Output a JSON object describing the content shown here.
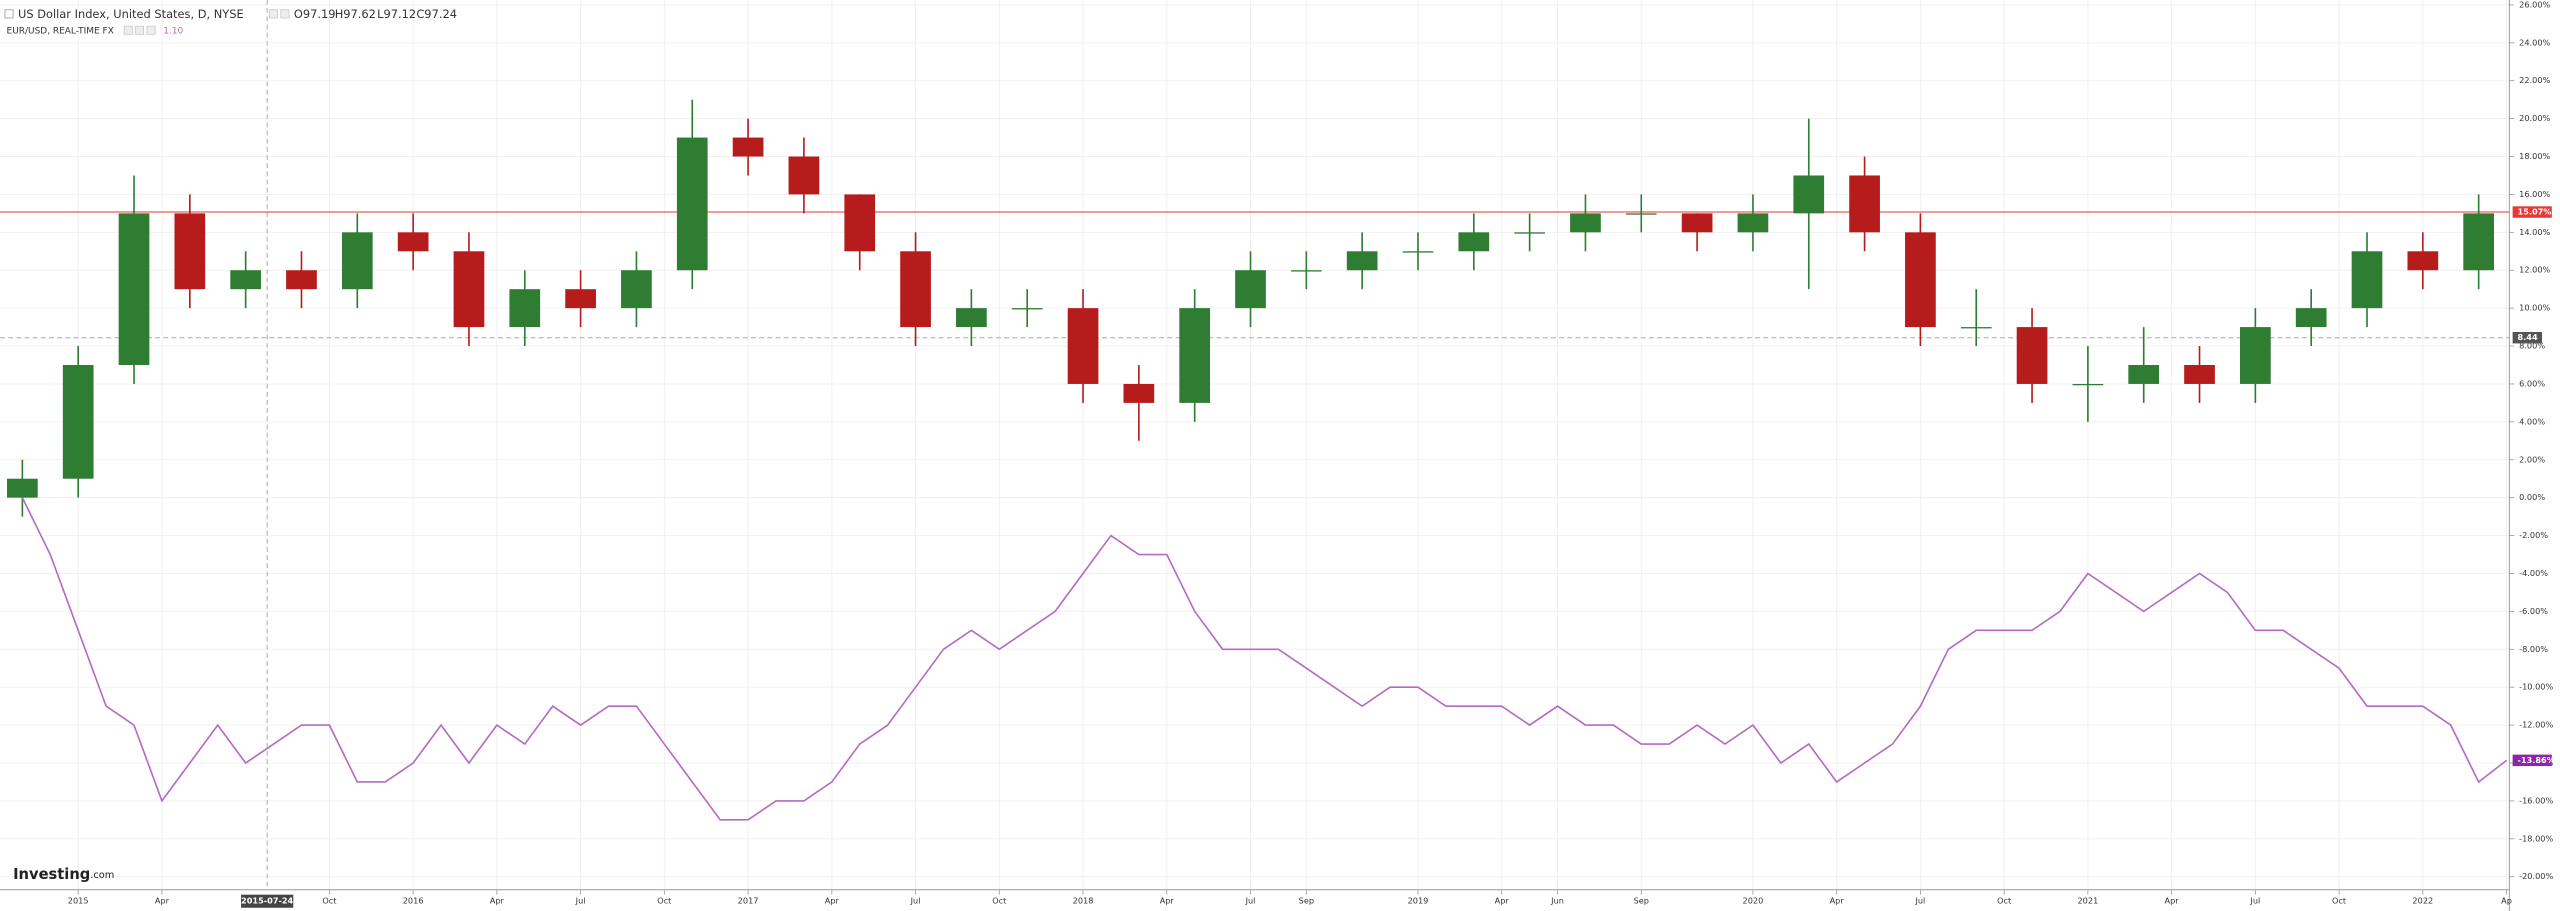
{
  "chart_data": {
    "type": "candlestick",
    "series": [
      {
        "name": "US Dollar Index, United States, D, NYSE",
        "type": "candlestick",
        "up_color": "#2e7d32",
        "down_color": "#b71c1c",
        "quote": [
          "O97.19",
          "H97.62",
          "L97.12",
          "C97.24"
        ],
        "last": {
          "value": 15.07,
          "label": "15.07%"
        },
        "last_color": "#e53935",
        "x": [
          -2,
          0,
          2,
          4,
          6,
          8,
          10,
          12,
          14,
          16,
          18,
          20,
          22,
          24,
          26,
          28,
          30,
          32,
          34,
          36,
          38,
          40,
          42,
          44,
          46,
          48,
          50,
          52,
          54,
          56,
          58,
          60,
          62,
          64,
          66,
          68,
          70,
          72,
          74,
          76,
          78,
          80,
          82,
          84,
          86
        ],
        "open": [
          0,
          1,
          7,
          15,
          11,
          12,
          11,
          14,
          13,
          9,
          11,
          10,
          12,
          19,
          18,
          16,
          13,
          9,
          10,
          10,
          6,
          5,
          10,
          12,
          12,
          13,
          13,
          14,
          14,
          15,
          15,
          14,
          15,
          17,
          14,
          9,
          9,
          6,
          6,
          7,
          6,
          9,
          10,
          13,
          12
        ],
        "high": [
          2,
          8,
          17,
          16,
          13,
          13,
          15,
          15,
          14,
          12,
          12,
          13,
          21,
          20,
          19,
          16,
          14,
          11,
          11,
          11,
          7,
          11,
          13,
          13,
          14,
          14,
          15,
          15,
          16,
          16,
          15,
          16,
          20,
          18,
          15,
          11,
          10,
          8,
          9,
          8,
          10,
          11,
          14,
          14,
          16
        ],
        "low": [
          -1,
          0,
          6,
          10,
          10,
          10,
          10,
          12,
          8,
          8,
          9,
          9,
          11,
          17,
          15,
          12,
          8,
          8,
          9,
          5,
          3,
          4,
          9,
          11,
          11,
          12,
          12,
          13,
          13,
          14,
          13,
          13,
          11,
          13,
          8,
          8,
          5,
          4,
          5,
          5,
          5,
          8,
          9,
          11,
          11
        ],
        "close": [
          1,
          7,
          15,
          11,
          12,
          11,
          14,
          13,
          9,
          11,
          10,
          12,
          19,
          18,
          16,
          13,
          9,
          10,
          10,
          6,
          5,
          10,
          12,
          12,
          13,
          13,
          14,
          14,
          15,
          15,
          14,
          15,
          17,
          14,
          9,
          9,
          6,
          6,
          7,
          6,
          9,
          10,
          13,
          12,
          15
        ]
      },
      {
        "name": "EUR/USD, REAL-TIME FX",
        "type": "line",
        "color": "#b36bc4",
        "quote": "1.10",
        "last": {
          "value": -13.86,
          "label": "-13.86%"
        },
        "last_color": "#8e24aa",
        "x": [
          -2,
          -1,
          0,
          1,
          2,
          3,
          4,
          5,
          6,
          7,
          8,
          9,
          10,
          11,
          12,
          13,
          14,
          15,
          16,
          17,
          18,
          19,
          20,
          21,
          22,
          23,
          24,
          25,
          26,
          27,
          28,
          29,
          30,
          31,
          32,
          33,
          34,
          35,
          36,
          37,
          38,
          39,
          40,
          41,
          42,
          43,
          44,
          45,
          46,
          47,
          48,
          49,
          50,
          51,
          52,
          53,
          54,
          55,
          56,
          57,
          58,
          59,
          60,
          61,
          62,
          63,
          64,
          65,
          66,
          67,
          68,
          69,
          70,
          71,
          72,
          73,
          74,
          75,
          76,
          77,
          78,
          79,
          80,
          81,
          82,
          83,
          84,
          85,
          86,
          87
        ],
        "values": [
          0,
          -3,
          -7,
          -11,
          -12,
          -16,
          -14,
          -12,
          -14,
          -13,
          -12,
          -12,
          -15,
          -15,
          -14,
          -12,
          -14,
          -12,
          -13,
          -11,
          -12,
          -11,
          -11,
          -13,
          -15,
          -17,
          -17,
          -16,
          -16,
          -15,
          -13,
          -12,
          -10,
          -8,
          -7,
          -8,
          -7,
          -6,
          -4,
          -2,
          -3,
          -3,
          -6,
          -8,
          -8,
          -8,
          -9,
          -10,
          -11,
          -10,
          -10,
          -11,
          -11,
          -11,
          -12,
          -11,
          -12,
          -12,
          -13,
          -13,
          -12,
          -13,
          -12,
          -14,
          -13,
          -15,
          -14,
          -13,
          -11,
          -8,
          -7,
          -7,
          -7,
          -6,
          -4,
          -5,
          -6,
          -5,
          -4,
          -5,
          -7,
          -7,
          -8,
          -9,
          -11,
          -11,
          -11,
          -12,
          -15,
          -13.86
        ]
      }
    ],
    "reference_line": {
      "value": 8.44,
      "label": "8.44"
    },
    "crosshair": {
      "value": 6.77,
      "label": "2015-07-24"
    },
    "xlim": [
      -2.8,
      87.1
    ],
    "xticks": [
      {
        "value": 0,
        "label": "2015"
      },
      {
        "value": 3,
        "label": "Apr"
      },
      {
        "value": 9,
        "label": "Oct"
      },
      {
        "value": 12,
        "label": "2016"
      },
      {
        "value": 15,
        "label": "Apr"
      },
      {
        "value": 18,
        "label": "Jul"
      },
      {
        "value": 21,
        "label": "Oct"
      },
      {
        "value": 24,
        "label": "2017"
      },
      {
        "value": 27,
        "label": "Apr"
      },
      {
        "value": 30,
        "label": "Jul"
      },
      {
        "value": 33,
        "label": "Oct"
      },
      {
        "value": 36,
        "label": "2018"
      },
      {
        "value": 39,
        "label": "Apr"
      },
      {
        "value": 42,
        "label": "Jul"
      },
      {
        "value": 44,
        "label": "Sep"
      },
      {
        "value": 48,
        "label": "2019"
      },
      {
        "value": 51,
        "label": "Apr"
      },
      {
        "value": 53,
        "label": "Jun"
      },
      {
        "value": 56,
        "label": "Sep"
      },
      {
        "value": 60,
        "label": "2020"
      },
      {
        "value": 63,
        "label": "Apr"
      },
      {
        "value": 66,
        "label": "Jul"
      },
      {
        "value": 69,
        "label": "Oct"
      },
      {
        "value": 72,
        "label": "2021"
      },
      {
        "value": 75,
        "label": "Apr"
      },
      {
        "value": 78,
        "label": "Jul"
      },
      {
        "value": 81,
        "label": "Oct"
      },
      {
        "value": 84,
        "label": "2022"
      },
      {
        "value": 87,
        "label": "Ap"
      }
    ],
    "ylim": [
      -20,
      26
    ],
    "yticks": [
      {
        "value": 26,
        "label": "26.00%"
      },
      {
        "value": 24,
        "label": "24.00%"
      },
      {
        "value": 22,
        "label": "22.00%"
      },
      {
        "value": 20,
        "label": "20.00%"
      },
      {
        "value": 18,
        "label": "18.00%"
      },
      {
        "value": 16,
        "label": "16.00%"
      },
      {
        "value": 14,
        "label": "14.00%"
      },
      {
        "value": 12,
        "label": "12.00%"
      },
      {
        "value": 10,
        "label": "10.00%"
      },
      {
        "value": 8,
        "label": "8.00%"
      },
      {
        "value": 6,
        "label": "6.00%"
      },
      {
        "value": 4,
        "label": "4.00%"
      },
      {
        "value": 2,
        "label": "2.00%"
      },
      {
        "value": 0,
        "label": "0.00%"
      },
      {
        "value": -2,
        "label": "-2.00%"
      },
      {
        "value": -4,
        "label": "-4.00%"
      },
      {
        "value": -6,
        "label": "-6.00%"
      },
      {
        "value": -8,
        "label": "-8.00%"
      },
      {
        "value": -10,
        "label": "-10.00%"
      },
      {
        "value": -12,
        "label": "-12.00%"
      },
      {
        "value": -14,
        "label": "-14.00%"
      },
      {
        "value": -16,
        "label": "-16.00%"
      },
      {
        "value": -18,
        "label": "-18.00%"
      },
      {
        "value": -20,
        "label": "-20.00%"
      }
    ],
    "grid": true,
    "logo": {
      "main": "Investing",
      "suffix": ".com"
    }
  }
}
